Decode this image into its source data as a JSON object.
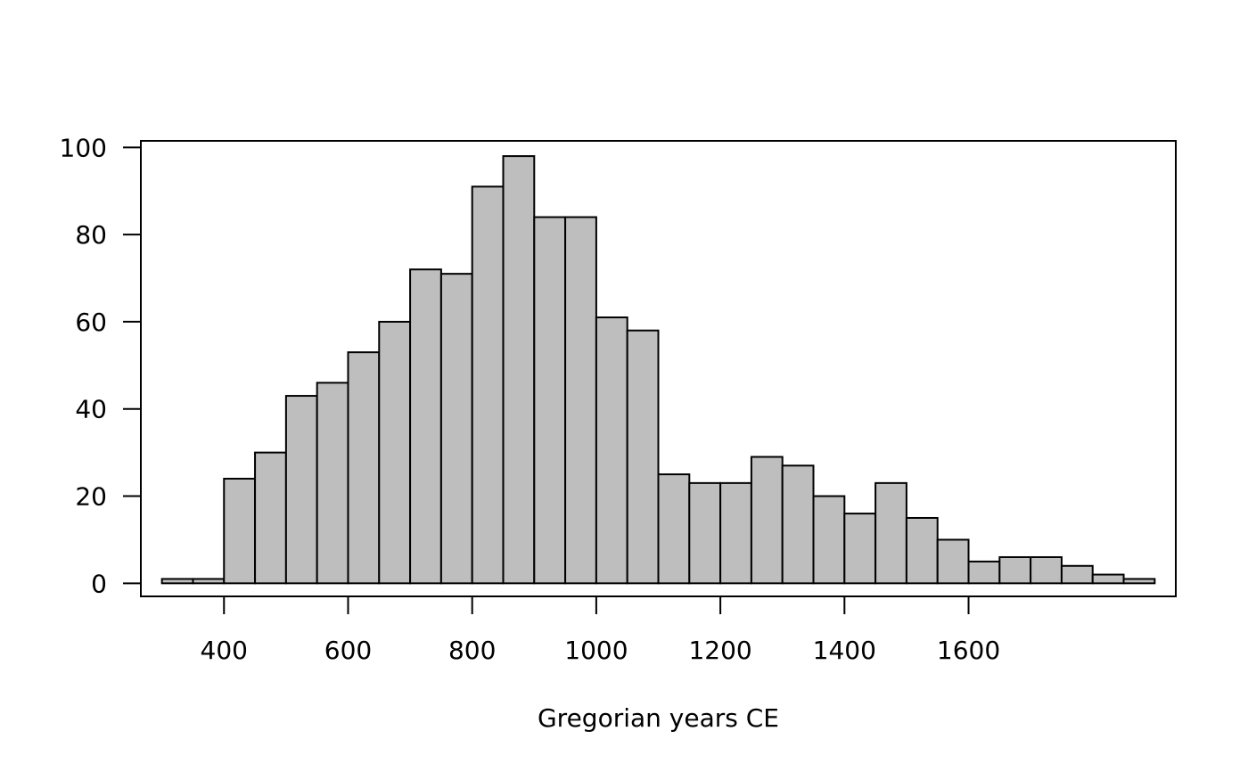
{
  "chart_data": {
    "type": "bar",
    "subtype": "histogram",
    "title": "",
    "xlabel": "Gregorian years CE",
    "ylabel": "",
    "bin_width": 50,
    "bins_start": [
      300,
      350,
      400,
      450,
      500,
      550,
      600,
      650,
      700,
      750,
      800,
      850,
      900,
      950,
      1000,
      1050,
      1100,
      1150,
      1200,
      1250,
      1300,
      1350,
      1400,
      1450,
      1500,
      1550,
      1600,
      1650,
      1700,
      1750,
      1800,
      1850
    ],
    "values": [
      1,
      1,
      24,
      30,
      43,
      46,
      53,
      60,
      72,
      71,
      91,
      98,
      84,
      84,
      61,
      58,
      25,
      23,
      23,
      29,
      27,
      20,
      16,
      23,
      15,
      10,
      5,
      6,
      6,
      4,
      2,
      1
    ],
    "xlim": [
      266,
      1934
    ],
    "ylim": [
      -3,
      101.5
    ],
    "x_ticks": [
      400,
      600,
      800,
      1000,
      1200,
      1400,
      1600
    ],
    "y_ticks": [
      0,
      20,
      40,
      60,
      80,
      100
    ],
    "fill_color": "#bebebe",
    "edge_color": "#000000",
    "grid": false,
    "legend": "none"
  }
}
